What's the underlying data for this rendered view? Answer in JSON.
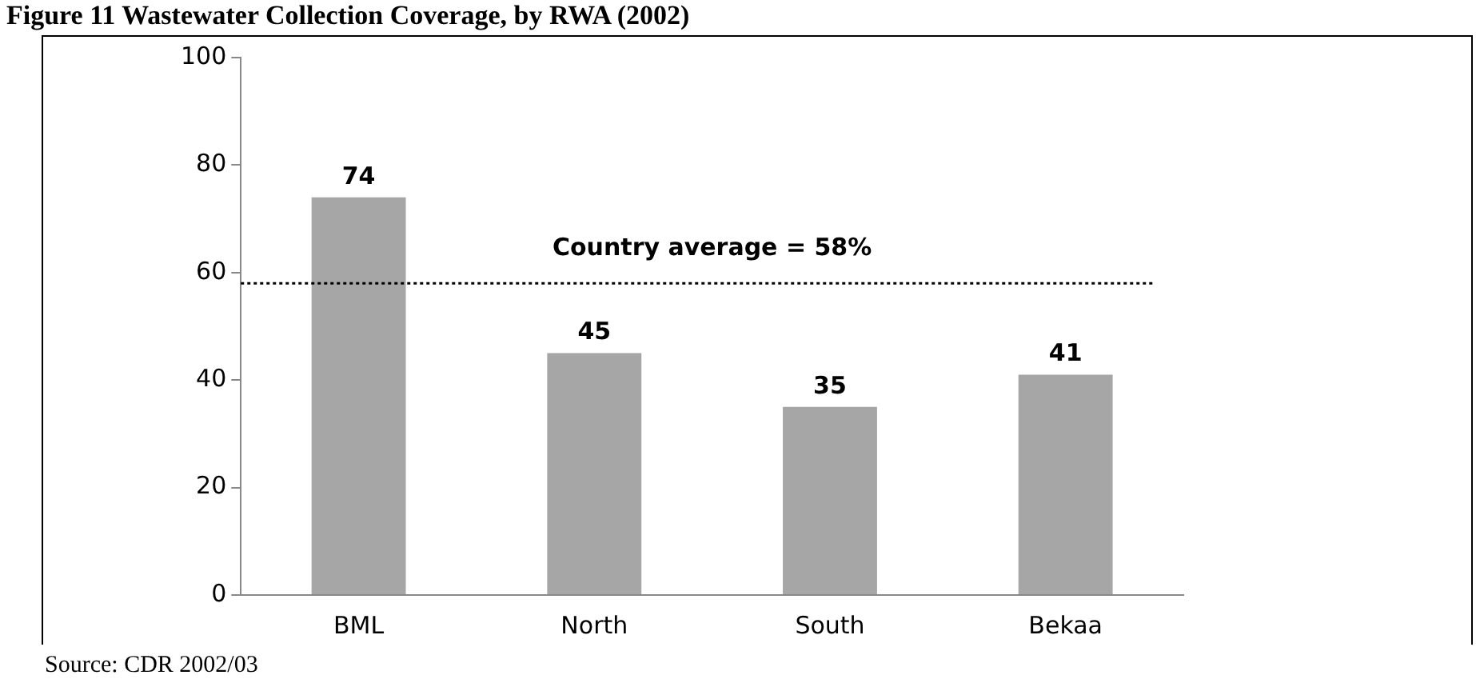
{
  "chart_data": {
    "type": "bar",
    "title": "Figure 11 Wastewater Collection Coverage, by RWA (2002)",
    "categories": [
      "BML",
      "North",
      "South",
      "Bekaa"
    ],
    "values": [
      74,
      45,
      35,
      41
    ],
    "color": "#a6a6a6",
    "ylim": [
      0,
      100
    ],
    "yticks": [
      0,
      20,
      40,
      60,
      80,
      100
    ],
    "grid": false,
    "legend": false,
    "data_labels": true,
    "ref_lines": [
      {
        "axis": "y",
        "value": 58,
        "label": "Country average = 58%",
        "color": "#000000",
        "line_style": "dotted"
      }
    ],
    "annotations": [
      "Source: CDR 2002/03"
    ]
  }
}
